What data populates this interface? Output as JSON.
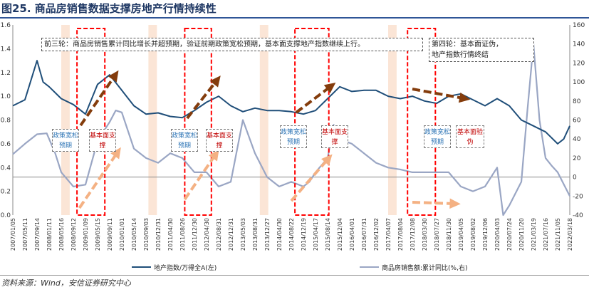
{
  "figure_title": "图25. 商品房销售数据支撑房地产行情持续性",
  "source": "资料来源：Wind，安信证券研究中心",
  "annotations": {
    "round3": "前三轮：商品房销售累计同比增长并超预期，验证前期政策宽松预期，基本面支撑地产指数继续上行。",
    "round4_line1": "第四轮：基本面证伪，",
    "round4_line2": "地产指数行情终结",
    "tags": [
      {
        "text": "政策宽松预期",
        "tone": "blue"
      },
      {
        "text": "基本面支撑",
        "tone": "red"
      },
      {
        "text": "政策宽松预期",
        "tone": "blue"
      },
      {
        "text": "基本面支撑",
        "tone": "red"
      },
      {
        "text": "政策宽松预期",
        "tone": "blue"
      },
      {
        "text": "基本面支撑",
        "tone": "red"
      },
      {
        "text": "政策宽松预期",
        "tone": "blue"
      },
      {
        "text": "基本面验伪",
        "tone": "red"
      }
    ]
  },
  "colors": {
    "index_line": "#1f4e79",
    "sales_line": "#9aa6c4",
    "highlight_red": "#ff0000",
    "arrow_brown": "#843c0c",
    "arrow_peach": "#f4b183",
    "band": "#fbe5d6"
  },
  "chart_data": {
    "type": "line",
    "xlabel": "",
    "ylabel_left": "",
    "ylabel_right": "",
    "ylim_left": [
      0,
      1.6
    ],
    "ylim_right": [
      -40,
      160
    ],
    "y_ticks_left": [
      "0.0",
      "0.2",
      "0.4",
      "0.6",
      "0.8",
      "1.0",
      "1.2",
      "1.4",
      "1.6"
    ],
    "y_ticks_right": [
      "-40",
      "-20",
      "0",
      "20",
      "40",
      "60",
      "80",
      "100",
      "120",
      "140",
      "160"
    ],
    "x_tick_labels": [
      "2007/01/05",
      "2007/05/11",
      "2007/09/14",
      "2008/01/11",
      "2008/05/16",
      "2008/09/12",
      "2009/01/09",
      "2009/05/15",
      "2009/09/11",
      "2010/01/01",
      "2010/05/14",
      "2010/09/03",
      "2010/12/31",
      "2011/04/30",
      "2011/08/26",
      "2011/12/30",
      "2012/04/30",
      "2012/08/31",
      "2012/12/31",
      "2013/05/03",
      "2013/08/31",
      "2013/12/27",
      "2014/04/30",
      "2014/08/22",
      "2014/12/19",
      "2015/04/17",
      "2015/08/14",
      "2015/12/04",
      "2016/04/01",
      "2016/07/31",
      "2016/12/02",
      "2017/04/07",
      "2017/08/04",
      "2017/12/08",
      "2018/03/30",
      "2018/07/27",
      "2018/11/30",
      "2019/04/05",
      "2019/08/02",
      "2019/12/06",
      "2020/04/03",
      "2020/07/24",
      "2020/11/20",
      "2021/03/19",
      "2021/07/16",
      "2021/11/05",
      "2022/03/18"
    ],
    "legend_position": "bottom",
    "series": [
      {
        "name": "地产指数/万得全A(左)",
        "axis": "left",
        "x": [
          0,
          1,
          2,
          2.5,
          3,
          4,
          5,
          6,
          7,
          8,
          9,
          10,
          11,
          12,
          13,
          14,
          15,
          16,
          17,
          18,
          19,
          20,
          21,
          22,
          23,
          24,
          25,
          26,
          27,
          28,
          29,
          30,
          31,
          32,
          33,
          34,
          35,
          36,
          37,
          38,
          39,
          40,
          41,
          42,
          43,
          44,
          45,
          45.5,
          46
        ],
        "values": [
          0.92,
          0.97,
          1.3,
          1.12,
          1.08,
          0.98,
          0.93,
          0.85,
          1.1,
          1.18,
          1.05,
          0.92,
          0.85,
          0.86,
          0.83,
          0.82,
          0.88,
          0.95,
          1.0,
          0.92,
          0.87,
          0.9,
          0.88,
          0.88,
          0.87,
          0.85,
          0.88,
          0.98,
          1.08,
          1.04,
          1.05,
          1.05,
          1.0,
          0.98,
          1.0,
          0.96,
          0.94,
          1.0,
          1.02,
          0.97,
          0.92,
          0.98,
          0.92,
          0.8,
          0.75,
          0.7,
          0.6,
          0.64,
          0.75
        ]
      },
      {
        "name": "商品房销售额:累计同比(%,右)",
        "axis": "right",
        "x": [
          0,
          1,
          2,
          2.8,
          3.5,
          4,
          5,
          6,
          7,
          8,
          8.5,
          9,
          10,
          11,
          12,
          13,
          14,
          15,
          16,
          17,
          18,
          19,
          20,
          21,
          22,
          23,
          24,
          24.5,
          25,
          26,
          26.5,
          27,
          28,
          29,
          30,
          31,
          32,
          33,
          34,
          35,
          36,
          37,
          38,
          39,
          40,
          40.5,
          41,
          42,
          42.5,
          43,
          43.5,
          44,
          44.5,
          45,
          46
        ],
        "values": [
          24,
          35,
          45,
          46,
          25,
          5,
          -10,
          -8,
          38,
          58,
          70,
          68,
          30,
          20,
          15,
          25,
          20,
          5,
          5,
          -10,
          -5,
          60,
          25,
          0,
          -10,
          -5,
          -10,
          -5,
          5,
          20,
          55,
          40,
          35,
          25,
          15,
          10,
          8,
          5,
          5,
          5,
          5,
          -10,
          -15,
          -10,
          10,
          -40,
          -30,
          -5,
          70,
          140,
          60,
          20,
          12,
          5,
          -20
        ]
      }
    ]
  }
}
